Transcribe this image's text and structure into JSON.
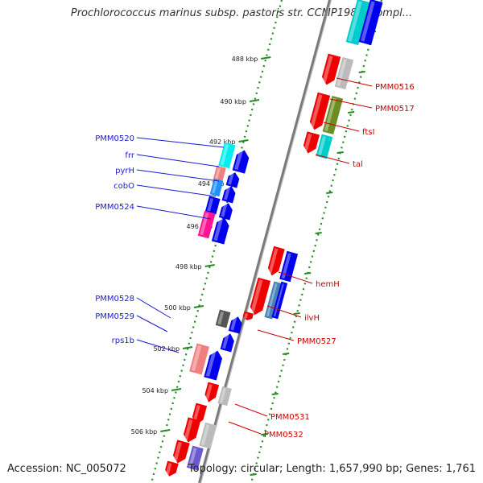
{
  "title": "Prochlorococcus marinus subsp. pastoris str. CCMP1986, compl...",
  "footer": {
    "accession": "Accession: NC_005072",
    "topology": "Topology: circular; Length: 1,657,990 bp; Genes: 1,761"
  },
  "ticks": [
    "488 kbp",
    "490 kbp",
    "492 kbp",
    "494 kbp",
    "496 kbp",
    "498 kbp",
    "500 kbp",
    "502 kbp",
    "504 kbp",
    "506 kbp"
  ],
  "left_labels": [
    "PMM0520",
    "frr",
    "pyrH",
    "cobO",
    "PMM0524",
    "PMM0528",
    "PMM0529",
    "rps1b"
  ],
  "right_labels": [
    "PMM0516",
    "PMM0517",
    "ftsI",
    "tal",
    "hemH",
    "ilvH",
    "PMM0527",
    "PMM0531",
    "PMM0532"
  ],
  "colors": {
    "forward_label": "#1a1ad0",
    "reverse_label": "#cc0000",
    "forward_gene": "#0000ee",
    "reverse_gene": "#ee0000",
    "backbone": "#7a7a7a",
    "dots": "#228b22"
  }
}
